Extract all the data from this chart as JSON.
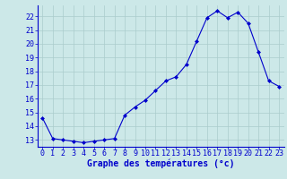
{
  "x": [
    0,
    1,
    2,
    3,
    4,
    5,
    6,
    7,
    8,
    9,
    10,
    11,
    12,
    13,
    14,
    15,
    16,
    17,
    18,
    19,
    20,
    21,
    22,
    23
  ],
  "y": [
    14.6,
    13.1,
    13.0,
    12.9,
    12.8,
    12.9,
    13.0,
    13.1,
    14.8,
    15.4,
    15.9,
    16.6,
    17.3,
    17.6,
    18.5,
    20.2,
    21.9,
    22.4,
    21.9,
    22.3,
    21.5,
    19.4,
    17.3,
    16.9
  ],
  "line_color": "#0000cc",
  "marker": "D",
  "marker_size": 2.0,
  "bg_color": "#cce8e8",
  "grid_color": "#aacccc",
  "xlabel": "Graphe des températures (°c)",
  "xlabel_fontsize": 7,
  "ylabel_ticks": [
    13,
    14,
    15,
    16,
    17,
    18,
    19,
    20,
    21,
    22
  ],
  "ylim": [
    12.5,
    22.8
  ],
  "xlim": [
    -0.5,
    23.5
  ],
  "tick_fontsize": 6,
  "axis_color": "#0000cc",
  "xlabel_color": "#0000cc",
  "xlabel_fontweight": "bold"
}
